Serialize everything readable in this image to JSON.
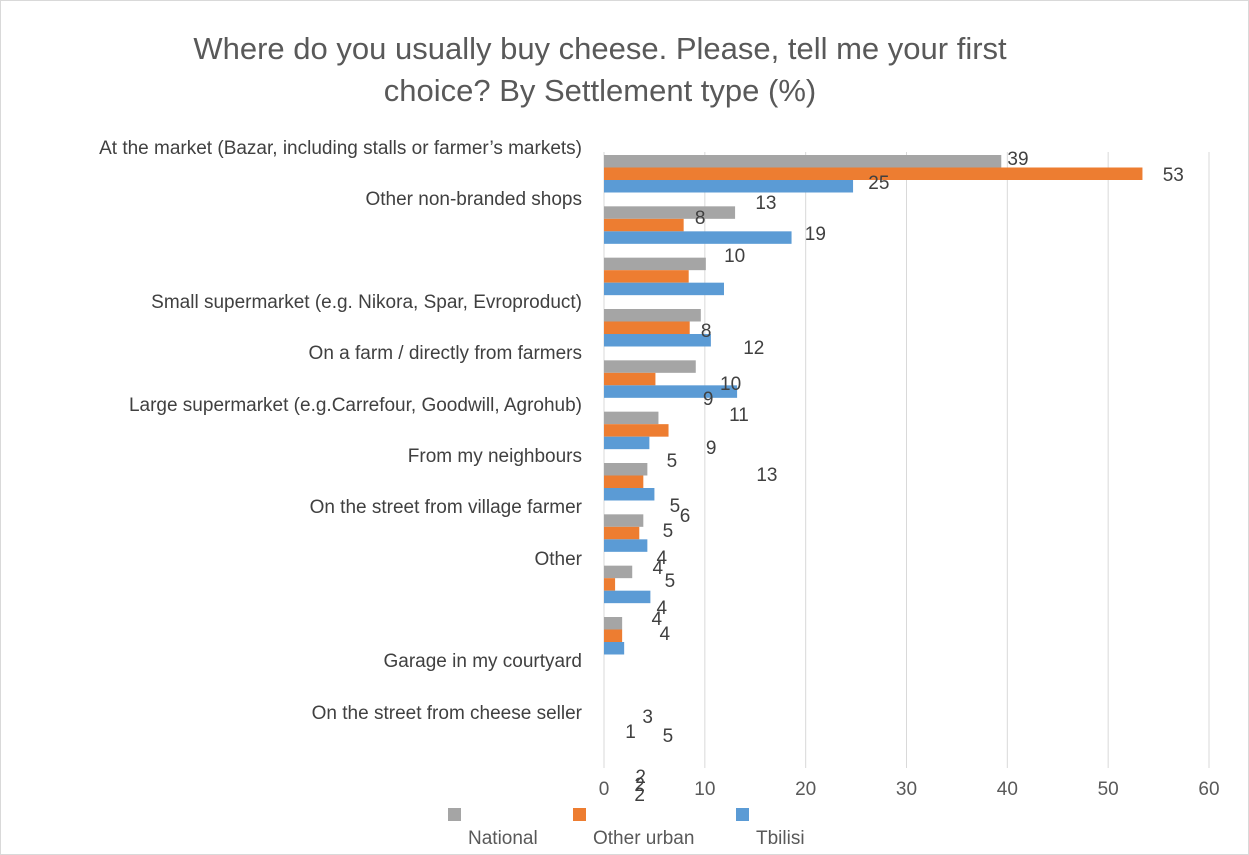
{
  "chart_data": {
    "type": "bar",
    "orientation": "horizontal",
    "title": "Where do you usually buy cheese. Please, tell me your first choice? By Settlement type (%)",
    "title_lines": [
      "Where  do  you  usually  buy  cheese. Please, tell me your first",
      "choice? By Settlement type (%)"
    ],
    "categories": [
      "At the market (Bazar, including  stalls or farmer’s markets)",
      "Other non-branded shops",
      "",
      "Small supermarket (e.g. Nikora, Spar, Evroproduct)",
      "On a farm  / directly from farmers",
      "Large supermarket (e.g.Carrefour, Goodwill, Agrohub)",
      "From my neighbours",
      "On the street from village farmer",
      "Other",
      "",
      "Garage in my courtyard",
      "On the street from cheese seller"
    ],
    "series": [
      {
        "name": "National",
        "color": "#a5a5a5",
        "values": [
          39.4,
          13.0,
          10.1,
          9.6,
          9.1,
          5.4,
          4.3,
          3.9,
          2.8,
          1.8,
          0,
          0
        ]
      },
      {
        "name": "Other urban",
        "color": "#ed7d31",
        "values": [
          53.4,
          7.9,
          8.4,
          8.5,
          5.1,
          6.4,
          3.9,
          3.5,
          1.1,
          1.8,
          0,
          0
        ]
      },
      {
        "name": "Tbilisi",
        "color": "#5b9bd5",
        "values": [
          24.7,
          18.6,
          11.9,
          10.6,
          13.2,
          4.5,
          5.0,
          4.3,
          4.6,
          2.0,
          0,
          0
        ]
      }
    ],
    "data_labels": [
      {
        "text": "39",
        "x": 41.1,
        "y": 0.15
      },
      {
        "text": "53",
        "x": 56.5,
        "y": 0.47
      },
      {
        "text": "25",
        "x": 27.3,
        "y": 0.62
      },
      {
        "text": "13",
        "x": 16.1,
        "y": 1.02
      },
      {
        "text": "8",
        "x": 10.1,
        "y": 1.3
      },
      {
        "text": "19",
        "x": 21.0,
        "y": 1.61
      },
      {
        "text": "10",
        "x": 13.0,
        "y": 2.04
      },
      {
        "text": "8",
        "x": 10.7,
        "y": 3.5
      },
      {
        "text": "12",
        "x": 14.9,
        "y": 3.84
      },
      {
        "text": "10",
        "x": 12.6,
        "y": 4.54
      },
      {
        "text": "9",
        "x": 10.9,
        "y": 4.83
      },
      {
        "text": "11",
        "x": 13.5,
        "y": 5.15
      },
      {
        "text": "9",
        "x": 11.2,
        "y": 5.78
      },
      {
        "text": "5",
        "x": 7.3,
        "y": 6.04
      },
      {
        "text": "13",
        "x": 16.2,
        "y": 6.32
      },
      {
        "text": "5",
        "x": 7.6,
        "y": 6.91
      },
      {
        "text": "6",
        "x": 8.6,
        "y": 7.12
      },
      {
        "text": "5",
        "x": 6.9,
        "y": 7.4
      },
      {
        "text": "4",
        "x": 6.3,
        "y": 7.93
      },
      {
        "text": "4",
        "x": 5.9,
        "y": 8.12
      },
      {
        "text": "5",
        "x": 7.1,
        "y": 8.38
      },
      {
        "text": "4",
        "x": 6.3,
        "y": 8.9
      },
      {
        "text": "4",
        "x": 5.8,
        "y": 9.12
      },
      {
        "text": "4",
        "x": 6.6,
        "y": 9.4
      },
      {
        "text": "3",
        "x": 4.9,
        "y": 11.02
      },
      {
        "text": "1",
        "x": 3.2,
        "y": 11.32
      },
      {
        "text": "5",
        "x": 6.9,
        "y": 11.39
      },
      {
        "text": "2",
        "x": 4.2,
        "y": 12.2
      },
      {
        "text": "2",
        "x": 4.1,
        "y": 12.36
      },
      {
        "text": "2",
        "x": 4.1,
        "y": 12.54
      }
    ],
    "xlim": [
      0,
      60
    ],
    "xticks": [
      "0",
      "10",
      "20",
      "30",
      "40",
      "50",
      "60"
    ],
    "grid": true,
    "legend_position": "bottom"
  }
}
